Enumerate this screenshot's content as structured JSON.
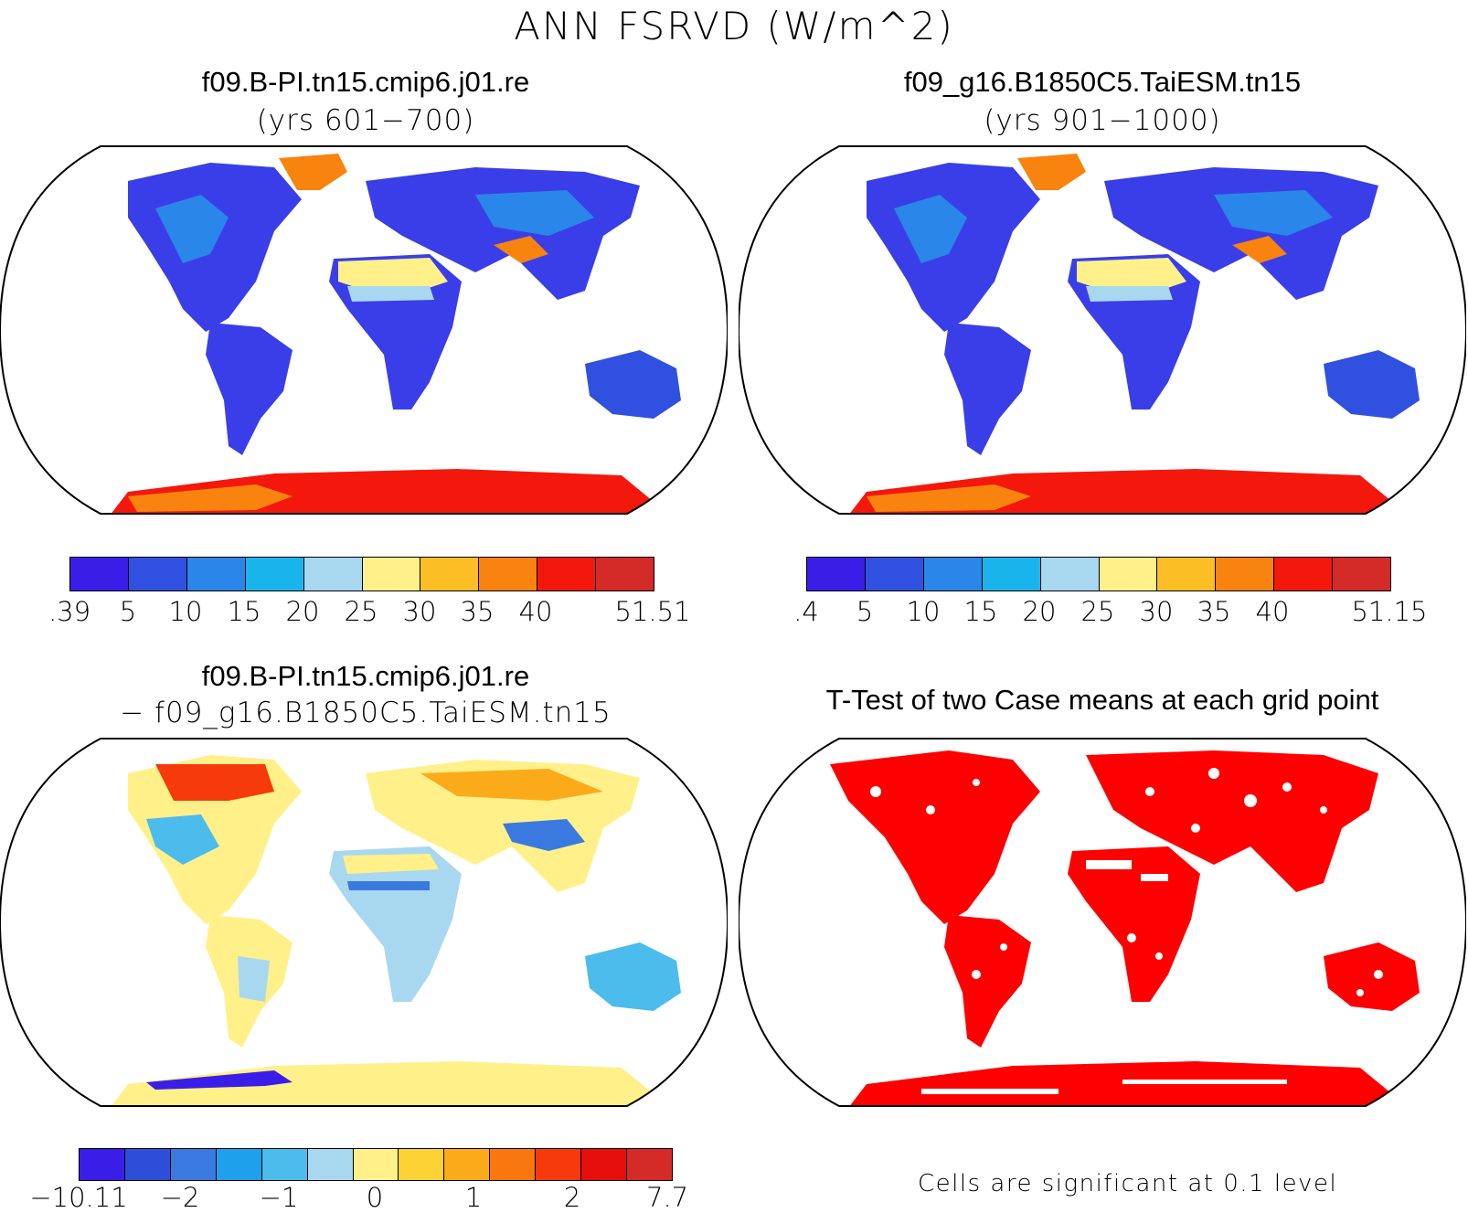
{
  "title": "ANN FSRVD (W/m^2)",
  "panels": {
    "top_left": {
      "title": "f09.B-PI.tn15.cmip6.j01.re",
      "subtitle": "(yrs 601−700)"
    },
    "top_right": {
      "title": "f09_g16.B1850C5.TaiESM.tn15",
      "subtitle": "(yrs 901−1000)"
    },
    "bottom_left": {
      "title": "f09.B-PI.tn15.cmip6.j01.re",
      "subtitle": "− f09_g16.B1850C5.TaiESM.tn15"
    },
    "bottom_right": {
      "title": "T-Test of two Case means at each grid point",
      "footnote": "Cells are significant at 0.1 level"
    }
  },
  "colorbars": {
    "top_left": {
      "ticks": [
        ".39",
        "5",
        "10",
        "15",
        "20",
        "25",
        "30",
        "35",
        "40",
        "51.51"
      ]
    },
    "top_right": {
      "ticks": [
        ".4",
        "5",
        "10",
        "15",
        "20",
        "25",
        "30",
        "35",
        "40",
        "51.15"
      ]
    },
    "bottom_left": {
      "ticks": [
        "−10.11",
        "−2",
        "−1",
        "0",
        "1",
        "2",
        "7.7"
      ]
    }
  },
  "colors": {
    "abs_palette": [
      "#3a1ee8",
      "#3050e0",
      "#2a86e8",
      "#1ab4ec",
      "#a8d8f0",
      "#fff08a",
      "#fbbf25",
      "#f8830f",
      "#f4180c",
      "#d42a28"
    ],
    "diff_palette": [
      "#3a1ee8",
      "#2c4ed8",
      "#3a7ae0",
      "#1ea0ec",
      "#4bbcec",
      "#a8d8f0",
      "#fff08a",
      "#fcd235",
      "#fbab1a",
      "#f8780f",
      "#f63a0c",
      "#e40e0a",
      "#d42a28"
    ],
    "significant": "#ff0000",
    "land_blue": "#3a3ee8",
    "ice_red": "#d42a28"
  }
}
